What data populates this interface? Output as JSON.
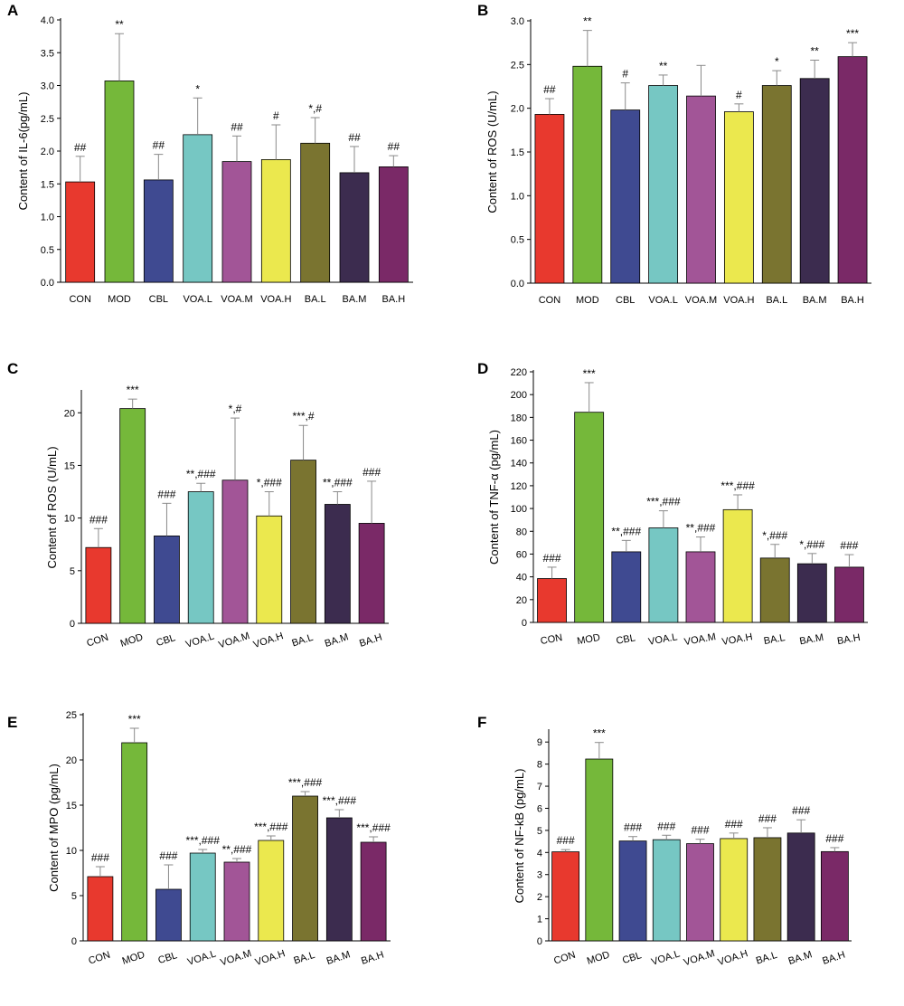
{
  "categories": [
    "CON",
    "MOD",
    "CBL",
    "VOA.L",
    "VOA.M",
    "VOA.H",
    "BA.L",
    "BA.M",
    "BA.H"
  ],
  "colors": [
    "#e8392e",
    "#75b83a",
    "#3f4a91",
    "#76c7c3",
    "#a25597",
    "#ebe84e",
    "#7a7430",
    "#3c2c4f",
    "#7a2967"
  ],
  "chart_data": [
    {
      "panel": "A",
      "type": "bar",
      "categories": [
        "CON",
        "MOD",
        "CBL",
        "VOA.L",
        "VOA.M",
        "VOA.H",
        "BA.L",
        "BA.M",
        "BA.H"
      ],
      "values": [
        1.53,
        3.07,
        1.56,
        2.25,
        1.84,
        1.87,
        2.12,
        1.67,
        1.76
      ],
      "errors": [
        0.39,
        0.72,
        0.39,
        0.56,
        0.39,
        0.53,
        0.39,
        0.4,
        0.17
      ],
      "annotations": [
        "##",
        "**",
        "##",
        "*",
        "##",
        "#",
        "*,#",
        "##",
        "##"
      ],
      "ylabel": "Content of IL-6(pg/mL)",
      "ylim": [
        0,
        4
      ],
      "yticks": [
        "0.0",
        "0.5",
        "1.0",
        "1.5",
        "2.0",
        "2.5",
        "3.0",
        "3.5",
        "4.0"
      ]
    },
    {
      "panel": "B",
      "type": "bar",
      "categories": [
        "CON",
        "MOD",
        "CBL",
        "VOA.L",
        "VOA.M",
        "VOA.H",
        "BA.L",
        "BA.M",
        "BA.H"
      ],
      "values": [
        1.93,
        2.48,
        1.98,
        2.26,
        2.14,
        1.96,
        2.26,
        2.34,
        2.59
      ],
      "errors": [
        0.18,
        0.41,
        0.31,
        0.12,
        0.35,
        0.09,
        0.17,
        0.21,
        0.16
      ],
      "annotations": [
        "##",
        "**",
        "#",
        "**",
        "",
        "#",
        "*",
        "**",
        "***"
      ],
      "ylabel": "Content of ROS (U/mL)",
      "ylim": [
        0,
        3
      ],
      "yticks": [
        "0.0",
        "0.5",
        "1.0",
        "1.5",
        "2.0",
        "2.5",
        "3.0"
      ]
    },
    {
      "panel": "C",
      "type": "bar",
      "categories": [
        "CON",
        "MOD",
        "CBL",
        "VOA.L",
        "VOA.M",
        "VOA.H",
        "BA.L",
        "BA.M",
        "BA.H"
      ],
      "values": [
        7.2,
        20.4,
        8.3,
        12.5,
        13.6,
        10.2,
        15.5,
        11.3,
        9.5
      ],
      "errors": [
        1.8,
        0.9,
        3.1,
        0.8,
        5.9,
        2.3,
        3.3,
        1.2,
        4.0
      ],
      "annotations": [
        "###",
        "***",
        "###",
        "**,###",
        "*,#",
        "*,###",
        "***,#",
        "**,###",
        "###"
      ],
      "ylabel": "Content of ROS (U/mL)",
      "ylim": [
        0,
        22
      ],
      "yticks": [
        "0",
        "5",
        "10",
        "15",
        "20"
      ]
    },
    {
      "panel": "D",
      "type": "bar",
      "categories": [
        "CON",
        "MOD",
        "CBL",
        "VOA.L",
        "VOA.M",
        "VOA.H",
        "BA.L",
        "BA.M",
        "BA.H"
      ],
      "values": [
        38.5,
        184.5,
        62,
        83,
        62,
        99,
        56.5,
        51.5,
        48.5
      ],
      "errors": [
        10,
        26,
        10,
        15,
        13,
        13,
        12,
        9,
        11
      ],
      "annotations": [
        "###",
        "***",
        "**,###",
        "***,###",
        "**,###",
        "***,###",
        "*,###",
        "*,###",
        "###"
      ],
      "ylabel": "Content of TNF-α (pg/mL)",
      "ylim": [
        0,
        220
      ],
      "yticks": [
        "0",
        "20",
        "40",
        "60",
        "80",
        "100",
        "120",
        "140",
        "160",
        "180",
        "200",
        "220"
      ]
    },
    {
      "panel": "E",
      "type": "bar",
      "categories": [
        "CON",
        "MOD",
        "CBL",
        "VOA.L",
        "VOA.M",
        "VOA.H",
        "BA.L",
        "BA.M",
        "BA.H"
      ],
      "values": [
        7.1,
        21.9,
        5.7,
        9.7,
        8.7,
        11.1,
        16.0,
        13.6,
        10.9
      ],
      "errors": [
        1.1,
        1.6,
        2.7,
        0.4,
        0.4,
        0.5,
        0.5,
        0.9,
        0.6
      ],
      "annotations": [
        "###",
        "***",
        "###",
        "***,###",
        "**,###",
        "***,###",
        "***,###",
        "***,###",
        "***,###"
      ],
      "ylabel": "Content of MPO (pg/mL)",
      "ylim": [
        0,
        25
      ],
      "yticks": [
        "0",
        "5",
        "10",
        "15",
        "20",
        "25"
      ]
    },
    {
      "panel": "F",
      "type": "bar",
      "categories": [
        "CON",
        "MOD",
        "CBL",
        "VOA.L",
        "VOA.M",
        "VOA.H",
        "BA.L",
        "BA.M",
        "BA.H"
      ],
      "values": [
        4.03,
        8.23,
        4.52,
        4.58,
        4.4,
        4.63,
        4.67,
        4.88,
        4.04
      ],
      "errors": [
        0.1,
        0.75,
        0.2,
        0.2,
        0.2,
        0.25,
        0.45,
        0.6,
        0.18
      ],
      "annotations": [
        "###",
        "***",
        "###",
        "###",
        "###",
        "###",
        "###",
        "###",
        "###"
      ],
      "ylabel": "Content of NF-kB (pg/mL)",
      "ylim": [
        0,
        9.5
      ],
      "yticks": [
        "0",
        "1",
        "2",
        "3",
        "4",
        "5",
        "6",
        "7",
        "8",
        "9"
      ]
    }
  ]
}
